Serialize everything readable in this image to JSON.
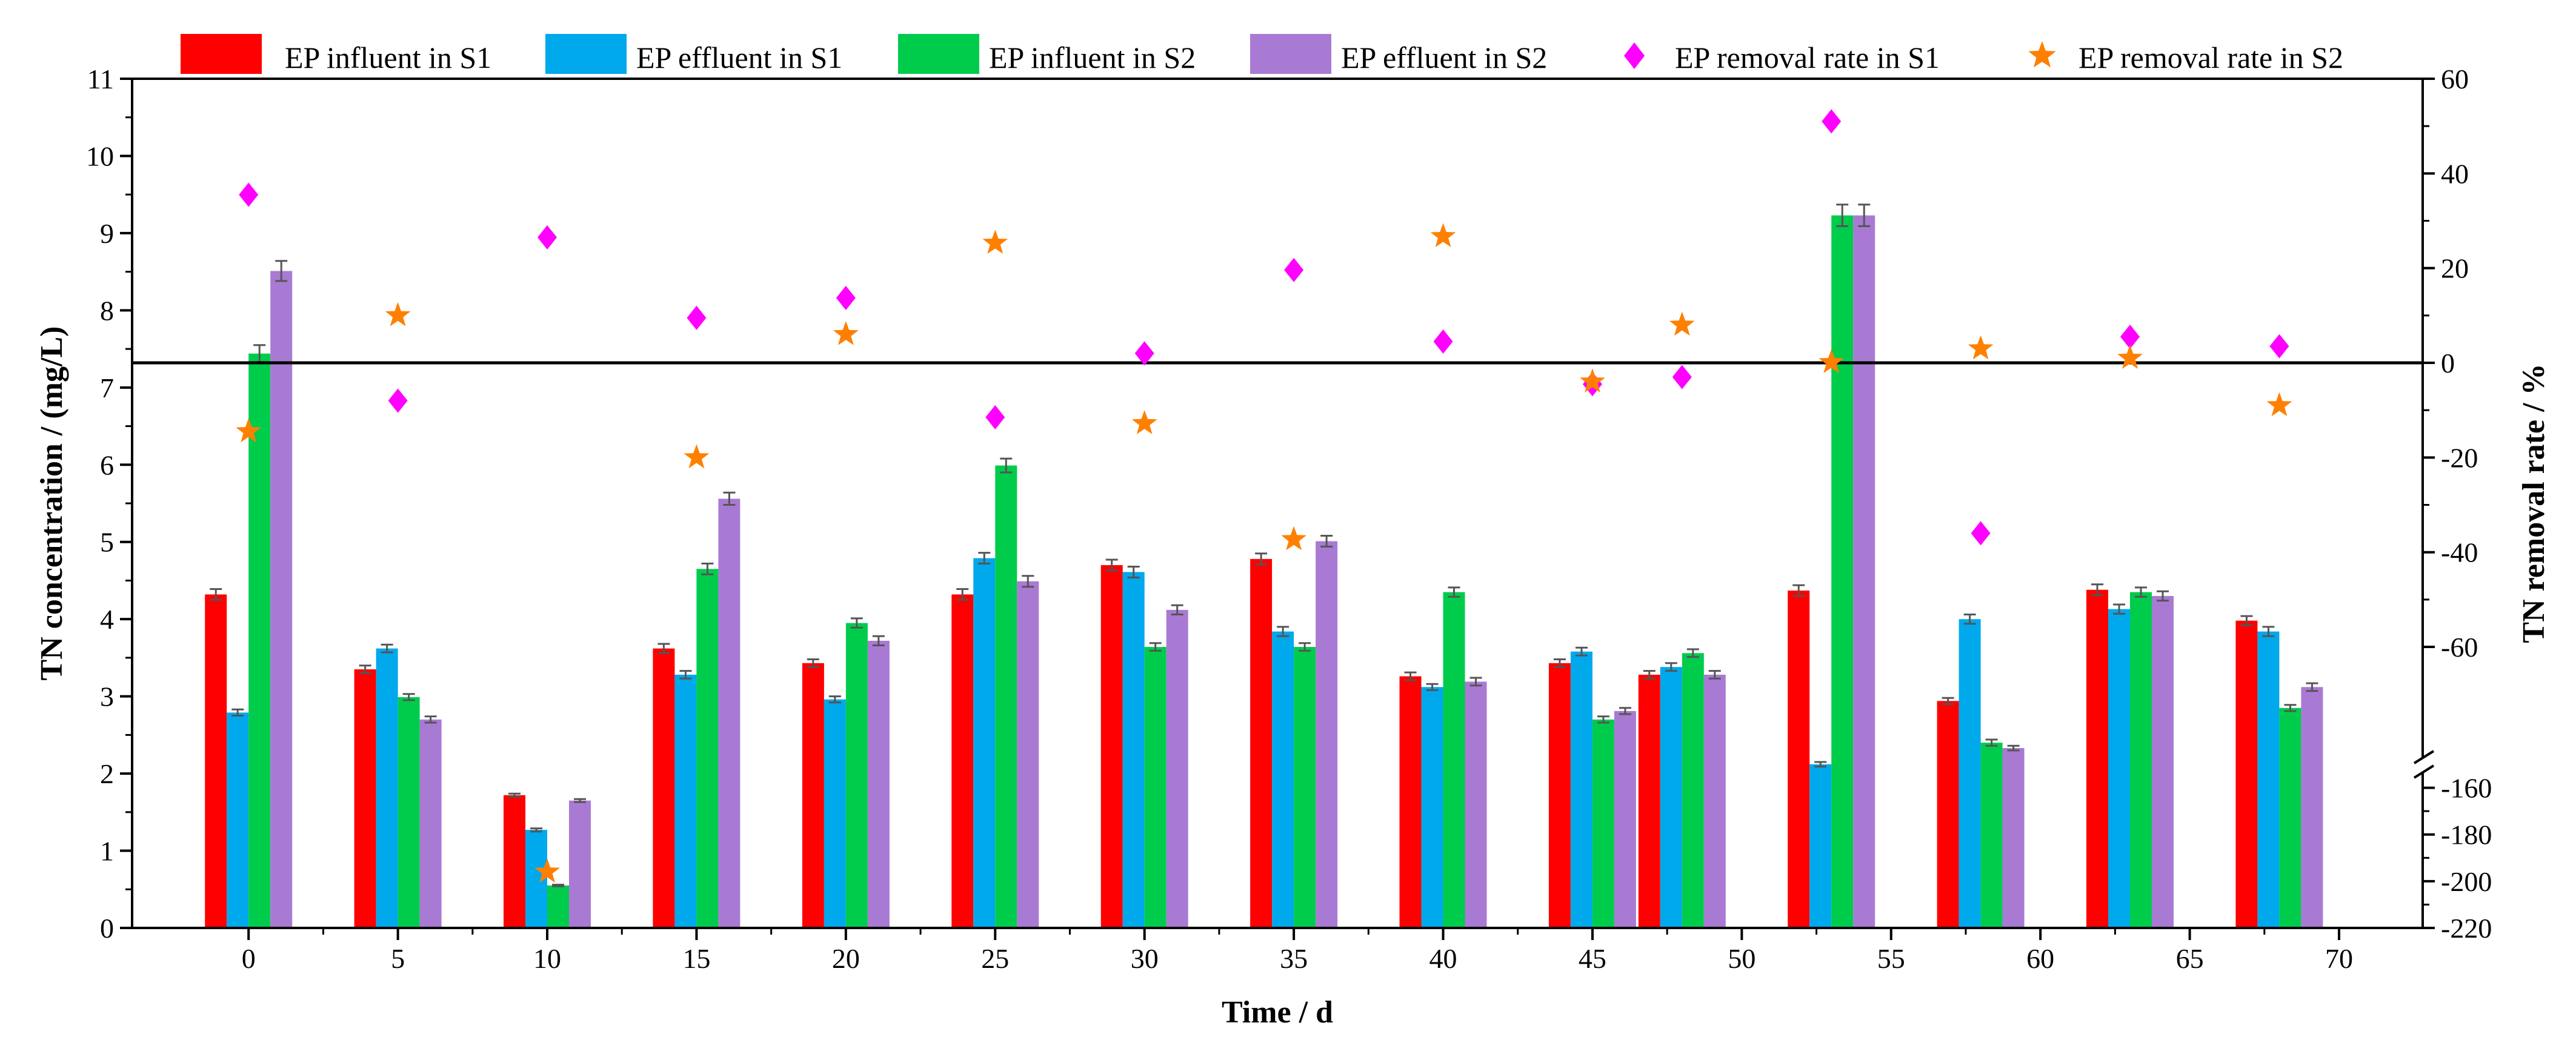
{
  "chart_data": {
    "type": "bar",
    "xlabel": "Time / d",
    "ylabel": "TN concentration / (mg/L)",
    "y2label": "TN removal rate / %",
    "x_ticks": [
      0,
      5,
      10,
      15,
      20,
      25,
      30,
      35,
      40,
      45,
      50,
      55,
      60,
      65,
      70
    ],
    "xlim": [
      -3.9,
      72.8
    ],
    "ylim": [
      0,
      11
    ],
    "y_ticks": [
      0,
      1,
      2,
      3,
      4,
      5,
      6,
      7,
      8,
      9,
      10,
      11
    ],
    "y2_upper_ticks": [
      60,
      40,
      20,
      0,
      -20,
      -40,
      -60
    ],
    "y2_upper_range": [
      -82,
      60
    ],
    "y2_lower_ticks": [
      -160,
      -180,
      -200,
      -220
    ],
    "y2_lower_range": [
      -220,
      -150
    ],
    "reference_line_value": 0,
    "days": [
      0,
      5,
      10,
      15,
      20,
      25,
      30,
      35,
      40,
      45,
      48,
      53,
      58,
      63,
      68
    ],
    "series": [
      {
        "name": "EP influent in S1",
        "color": "#ff0000",
        "values": [
          4.32,
          3.35,
          1.72,
          3.62,
          3.43,
          4.32,
          4.7,
          4.78,
          3.26,
          3.43,
          3.28,
          4.37,
          2.94,
          4.38,
          3.98
        ],
        "errors": [
          0.07,
          0.05,
          0.02,
          0.06,
          0.05,
          0.07,
          0.07,
          0.07,
          0.05,
          0.05,
          0.05,
          0.07,
          0.04,
          0.07,
          0.06
        ]
      },
      {
        "name": "EP effluent in S1",
        "color": "#00a8ec",
        "values": [
          2.79,
          3.62,
          1.27,
          3.28,
          2.96,
          4.79,
          4.61,
          3.84,
          3.12,
          3.58,
          3.38,
          2.12,
          4.0,
          4.13,
          3.84
        ],
        "errors": [
          0.04,
          0.05,
          0.02,
          0.05,
          0.04,
          0.07,
          0.07,
          0.06,
          0.04,
          0.05,
          0.05,
          0.03,
          0.06,
          0.06,
          0.06
        ]
      },
      {
        "name": "EP influent in S2",
        "color": "#00cc4c",
        "values": [
          7.44,
          2.99,
          0.55,
          4.65,
          3.95,
          5.99,
          3.64,
          3.64,
          4.35,
          2.7,
          3.56,
          9.23,
          2.4,
          4.35,
          2.85
        ],
        "errors": [
          0.11,
          0.04,
          0.01,
          0.07,
          0.06,
          0.09,
          0.05,
          0.05,
          0.06,
          0.04,
          0.05,
          0.14,
          0.04,
          0.06,
          0.04
        ]
      },
      {
        "name": "EP effluent in S2",
        "color": "#a97ad3",
        "values": [
          8.51,
          2.7,
          1.65,
          5.56,
          3.72,
          4.49,
          4.12,
          5.01,
          3.19,
          2.81,
          3.28,
          9.23,
          2.33,
          4.3,
          3.12
        ],
        "errors": [
          0.13,
          0.04,
          0.02,
          0.08,
          0.06,
          0.07,
          0.06,
          0.07,
          0.05,
          0.04,
          0.05,
          0.14,
          0.03,
          0.06,
          0.05
        ]
      }
    ],
    "scatter_series": [
      {
        "name": "EP removal rate in S1",
        "color": "#ff00ff",
        "marker": "diamond",
        "x": [
          0,
          5,
          10,
          15,
          20,
          25,
          30,
          35,
          40,
          45,
          48,
          53,
          58,
          63,
          68
        ],
        "y": [
          35.5,
          -8,
          26.5,
          9.5,
          13.7,
          -11.5,
          2,
          19.6,
          4.5,
          -4.5,
          -3,
          51,
          -36,
          5.5,
          3.5
        ]
      },
      {
        "name": "EP removal rate in S2",
        "color": "#ff8000",
        "marker": "star",
        "x": [
          0,
          5,
          10,
          15,
          20,
          25,
          30,
          35,
          40,
          45,
          48,
          53,
          58,
          63,
          68
        ],
        "y": [
          -14.5,
          10,
          -196,
          -20,
          6,
          25.3,
          -12.8,
          -37.3,
          26.7,
          -4,
          8,
          0.1,
          3,
          1,
          -9
        ]
      }
    ],
    "legend_position": "top"
  }
}
